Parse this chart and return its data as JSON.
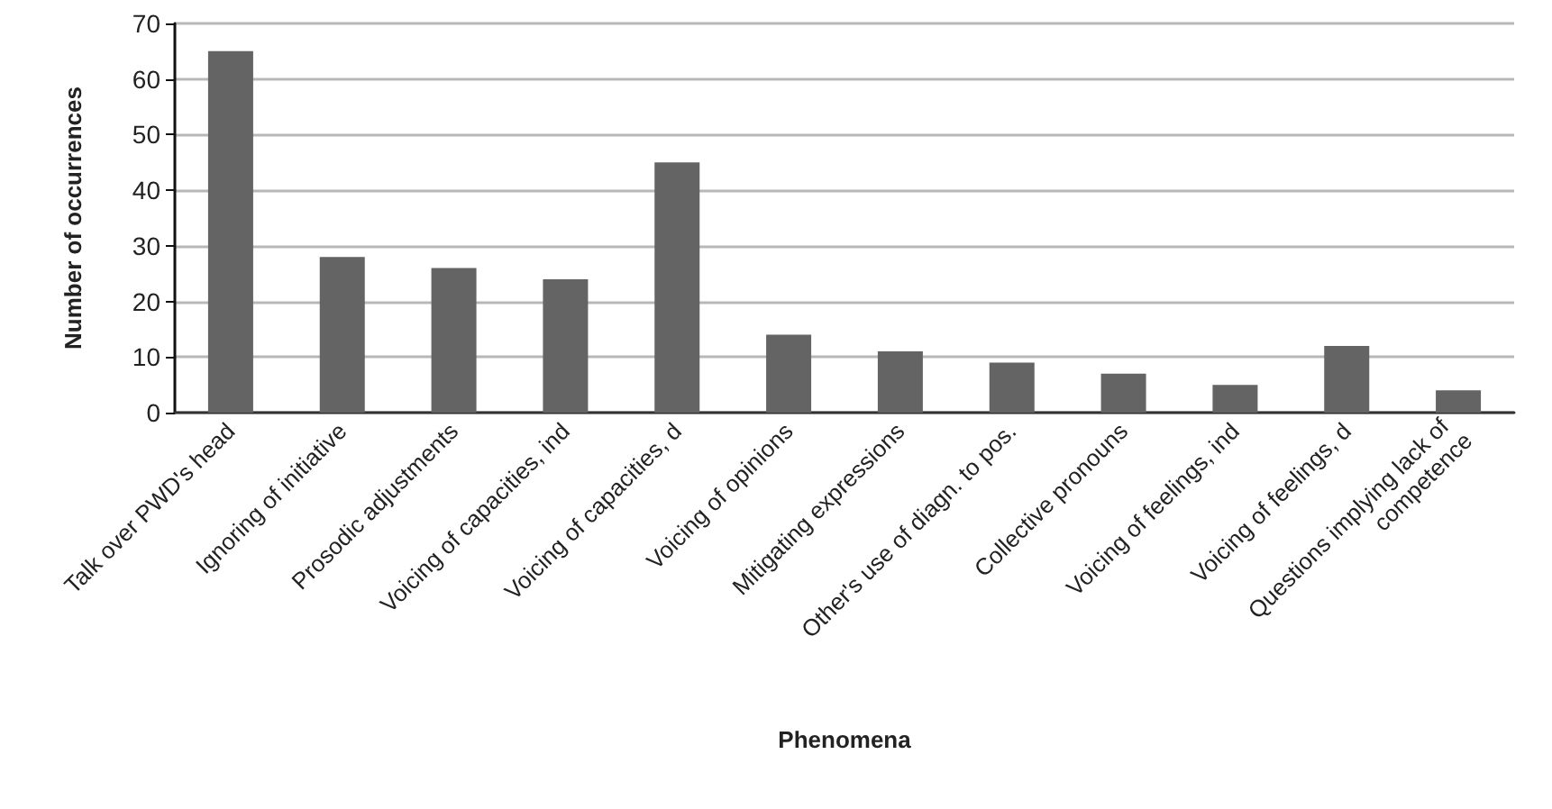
{
  "chart_data": {
    "type": "bar",
    "xlabel": "Phenomena",
    "ylabel": "Number of occurrences",
    "categories": [
      "Talk over PWD's head",
      "Ignoring of initiative",
      "Prosodic adjustments",
      "Voicing of capacities, ind",
      "Voicing of capacities, d",
      "Voicing of opinions",
      "Mitigating expressions",
      "Other's use of diagn. to pos.",
      "Collective pronouns",
      "Voicing of feelings, ind",
      "Voicing of feelings, d",
      "Questions implying lack of competence"
    ],
    "values": [
      65,
      28,
      26,
      24,
      45,
      14,
      11,
      9,
      7,
      5,
      12,
      4
    ],
    "color": "#646464",
    "ylim": [
      0,
      70
    ],
    "yticks": [
      0,
      10,
      20,
      30,
      40,
      50,
      60,
      70
    ],
    "grid": "y"
  }
}
